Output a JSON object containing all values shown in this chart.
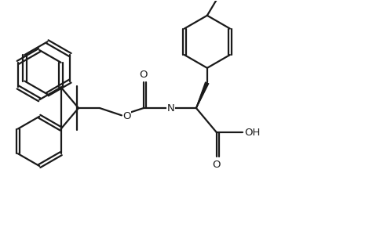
{
  "background_color": "#ffffff",
  "line_color": "#1a1a1a",
  "line_width": 1.6,
  "fig_width": 4.7,
  "fig_height": 3.04,
  "dpi": 100,
  "xlim": [
    0,
    10
  ],
  "ylim": [
    0,
    6.5
  ]
}
